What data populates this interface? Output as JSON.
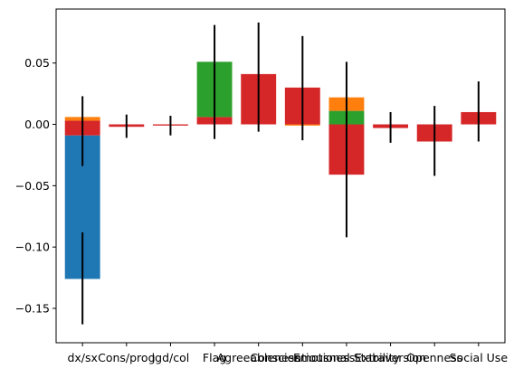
{
  "chart_data": {
    "type": "bar",
    "stacked": true,
    "categories": [
      "dx/sx",
      "Cons/prog",
      "lgd/col",
      "Flag",
      "Agreeableness",
      "Conscientiousness",
      "Emotional Stability",
      "Extraversion",
      "Openness",
      "Social Use"
    ],
    "ylim": [
      -0.178,
      0.094
    ],
    "yticks": [
      -0.15,
      -0.1,
      -0.05,
      0.0,
      0.05
    ],
    "ytick_labels": [
      "−0.15",
      "−0.10",
      "−0.05",
      "0.00",
      "0.05"
    ],
    "grid": false,
    "title": "",
    "xlabel": "",
    "ylabel": "",
    "colors": [
      "#1f77b4",
      "#ff7f0e",
      "#2ca02c",
      "#d62728"
    ],
    "bars": [
      {
        "category": "dx/sx",
        "segments": [
          {
            "color": "#1f77b4",
            "y0": -0.126,
            "y1": -0.009
          },
          {
            "color": "#d62728",
            "y0": -0.009,
            "y1": 0.0
          },
          {
            "color": "#d62728",
            "y0": 0.0,
            "y1": 0.003
          },
          {
            "color": "#ff7f0e",
            "y0": 0.003,
            "y1": 0.006
          }
        ]
      },
      {
        "category": "Cons/prog",
        "segments": [
          {
            "color": "#d62728",
            "y0": -0.002,
            "y1": 0.0
          }
        ]
      },
      {
        "category": "lgd/col",
        "segments": [
          {
            "color": "#d62728",
            "y0": -0.001,
            "y1": 0.0
          }
        ]
      },
      {
        "category": "Flag",
        "segments": [
          {
            "color": "#d62728",
            "y0": 0.0,
            "y1": 0.006
          },
          {
            "color": "#2ca02c",
            "y0": 0.006,
            "y1": 0.051
          }
        ]
      },
      {
        "category": "Agreeableness",
        "segments": [
          {
            "color": "#d62728",
            "y0": 0.0,
            "y1": 0.041
          }
        ]
      },
      {
        "category": "Conscientiousness",
        "segments": [
          {
            "color": "#ff7f0e",
            "y0": -0.001,
            "y1": 0.0
          },
          {
            "color": "#d62728",
            "y0": 0.0,
            "y1": 0.03
          }
        ]
      },
      {
        "category": "Emotional Stability",
        "segments": [
          {
            "color": "#d62728",
            "y0": -0.041,
            "y1": 0.0
          },
          {
            "color": "#2ca02c",
            "y0": 0.0,
            "y1": 0.011
          },
          {
            "color": "#ff7f0e",
            "y0": 0.011,
            "y1": 0.022
          }
        ]
      },
      {
        "category": "Extraversion",
        "segments": [
          {
            "color": "#d62728",
            "y0": -0.003,
            "y1": 0.0
          }
        ]
      },
      {
        "category": "Openness",
        "segments": [
          {
            "color": "#d62728",
            "y0": -0.014,
            "y1": 0.0
          }
        ]
      },
      {
        "category": "Social Use",
        "segments": [
          {
            "color": "#d62728",
            "y0": 0.0,
            "y1": 0.01
          }
        ]
      }
    ],
    "error_bars": [
      {
        "category": "dx/sx",
        "low": -0.034,
        "high": 0.023
      },
      {
        "category": "dx/sx",
        "low": -0.163,
        "high": -0.088
      },
      {
        "category": "Cons/prog",
        "low": -0.011,
        "high": 0.008
      },
      {
        "category": "lgd/col",
        "low": -0.009,
        "high": 0.007
      },
      {
        "category": "Flag",
        "low": -0.012,
        "high": 0.081
      },
      {
        "category": "Agreeableness",
        "low": -0.006,
        "high": 0.083
      },
      {
        "category": "Conscientiousness",
        "low": -0.013,
        "high": 0.072
      },
      {
        "category": "Emotional Stability",
        "low": -0.092,
        "high": 0.051
      },
      {
        "category": "Extraversion",
        "low": -0.015,
        "high": 0.01
      },
      {
        "category": "Openness",
        "low": -0.042,
        "high": 0.015
      },
      {
        "category": "Social Use",
        "low": -0.014,
        "high": 0.035
      }
    ]
  }
}
